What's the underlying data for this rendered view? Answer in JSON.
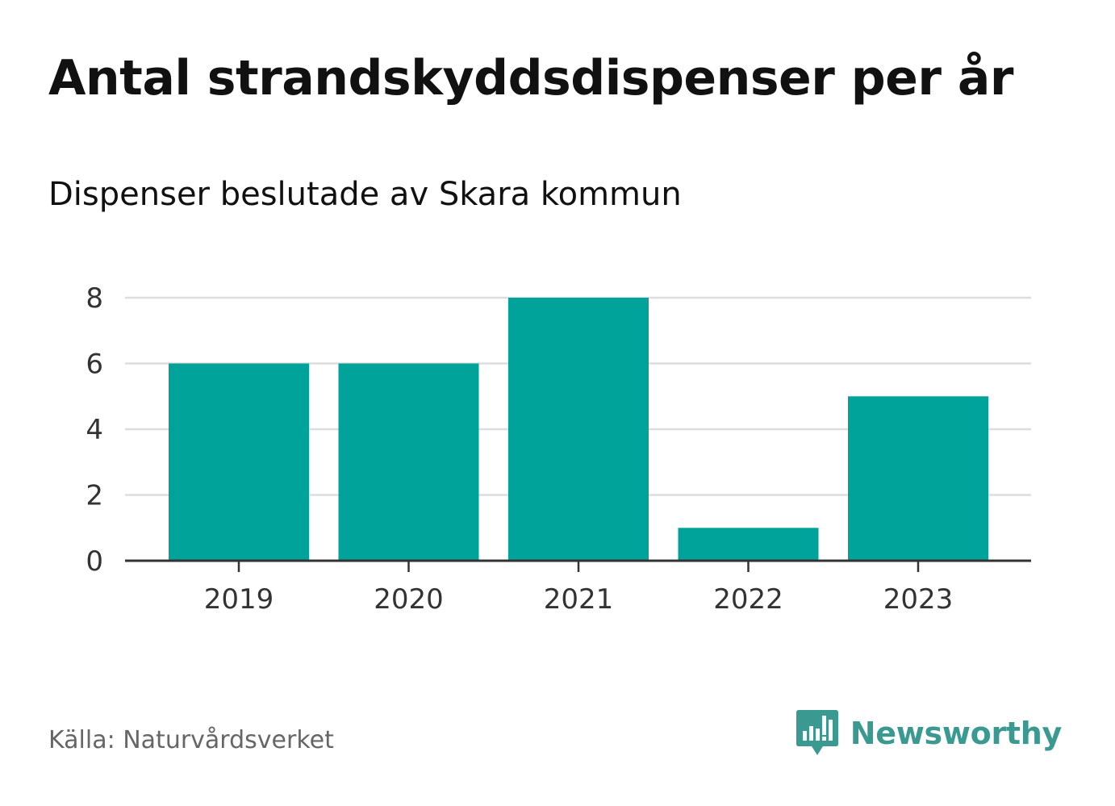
{
  "header": {
    "title": "Antal strandskyddsdispenser per år",
    "subtitle": "Dispenser beslutade av Skara kommun"
  },
  "footer": {
    "source": "Källa: Naturvårdsverket",
    "brand": "Newsworthy"
  },
  "colors": {
    "bar": "#00a39a",
    "grid": "#dddddd",
    "axis": "#333333",
    "brand": "#3a9a92"
  },
  "chart_data": {
    "type": "bar",
    "title": "Antal strandskyddsdispenser per år",
    "subtitle": "Dispenser beslutade av Skara kommun",
    "categories": [
      "2019",
      "2020",
      "2021",
      "2022",
      "2023"
    ],
    "values": [
      6,
      6,
      8,
      1,
      5
    ],
    "xlabel": "",
    "ylabel": "",
    "ylim": [
      0,
      8
    ],
    "yticks": [
      0,
      2,
      4,
      6,
      8
    ],
    "grid": true,
    "legend": "none"
  }
}
